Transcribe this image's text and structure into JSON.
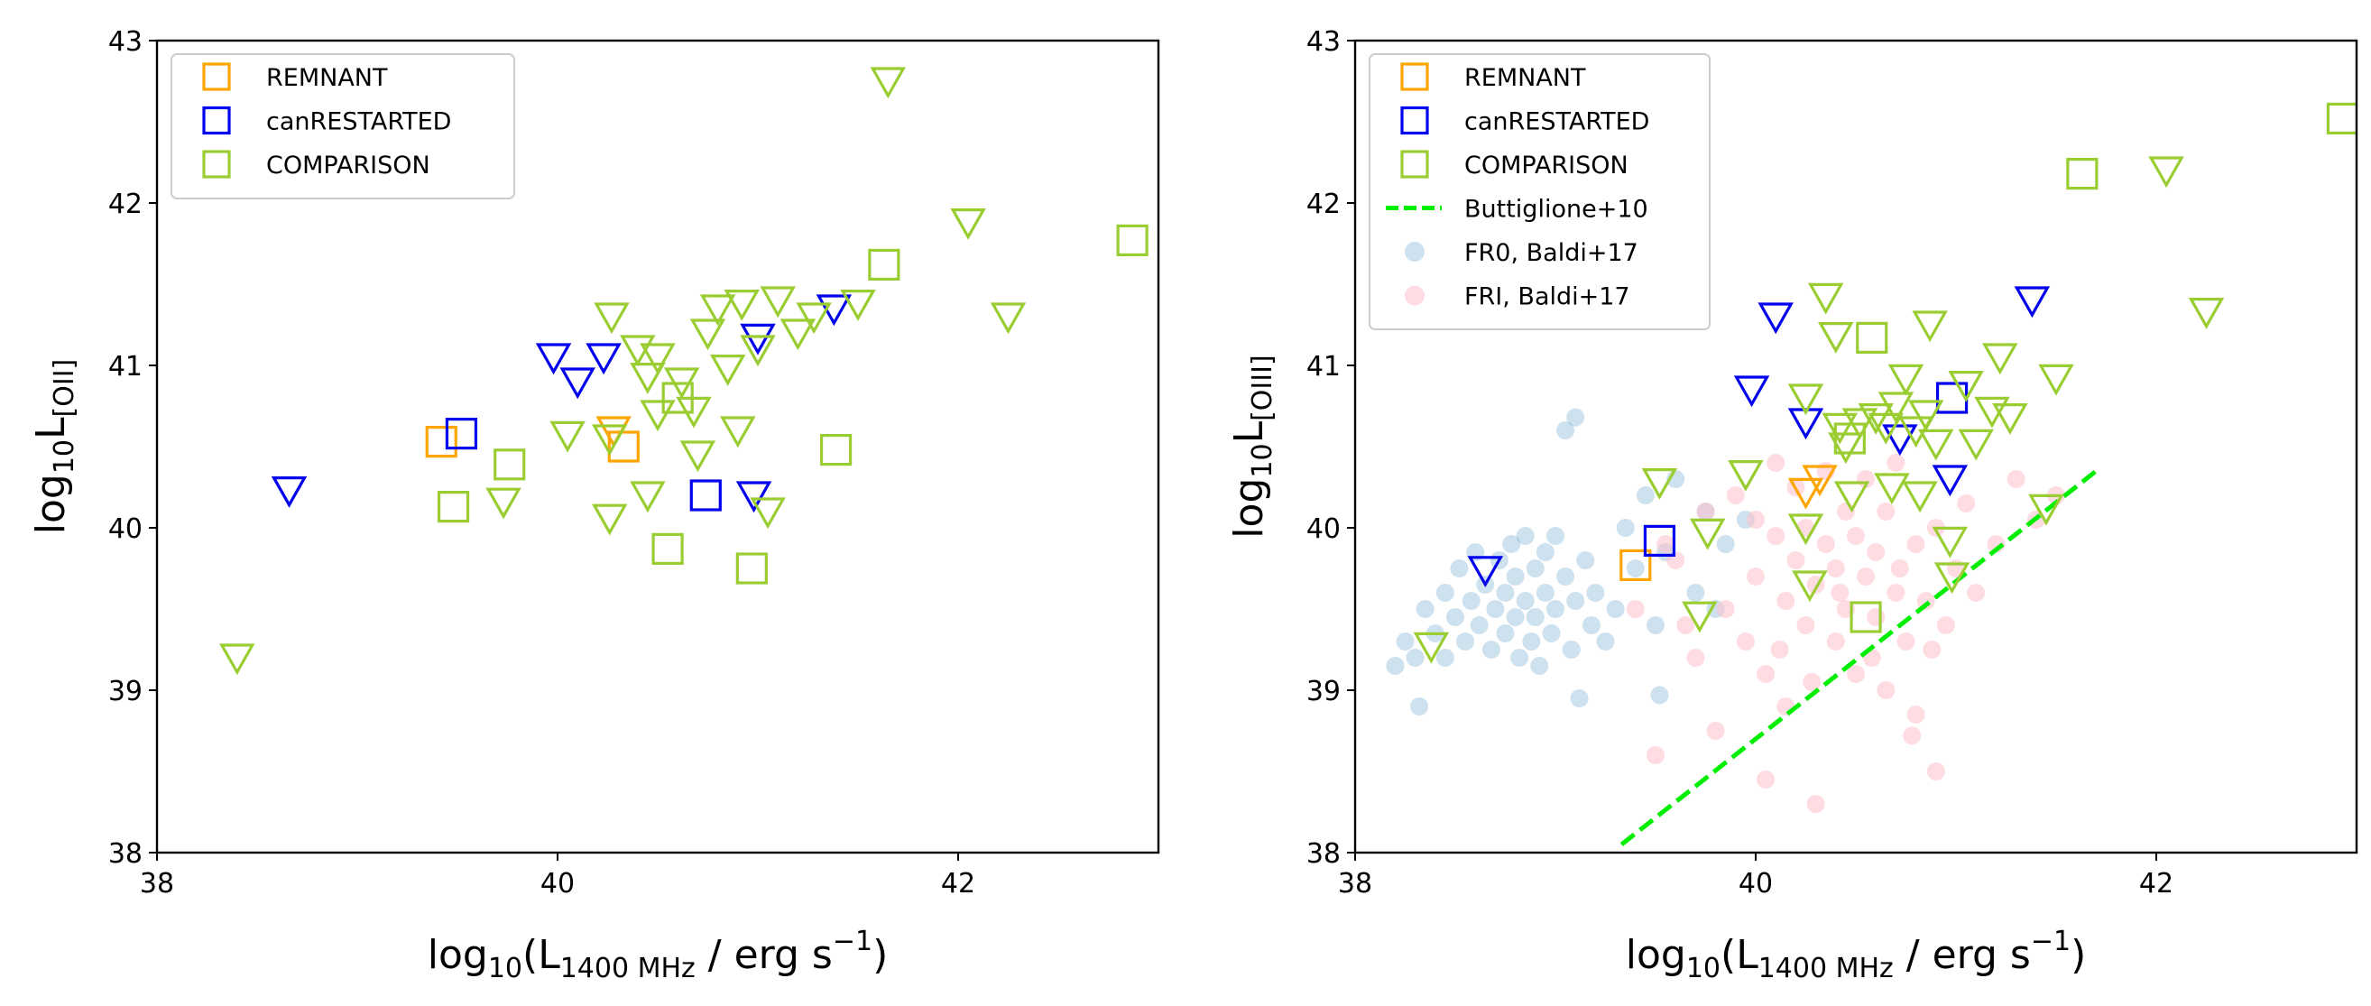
{
  "colors": {
    "remnant": "#ffa500",
    "canrestarted": "#0000ee",
    "comparison": "#9acd32",
    "buttiglione": "#00ee00",
    "fr0": "#1f77b4",
    "fri": "#ffc0cb"
  },
  "chart_data": [
    {
      "type": "scatter",
      "panel": "left",
      "xlim": [
        38,
        43
      ],
      "ylim": [
        38,
        43
      ],
      "xticks": [
        38,
        40,
        42
      ],
      "yticks": [
        38,
        39,
        40,
        41,
        42,
        43
      ],
      "xlabel": {
        "prefix": "log",
        "base": "10",
        "open": "(L",
        "sub": "1400 MHz",
        "unit": " / erg s",
        "exp": "−1",
        "close": ")"
      },
      "ylabel": {
        "prefix": "log",
        "base": "10",
        "main": "L",
        "sub": "[OII]"
      },
      "legend": {
        "loc": "top-left",
        "entries": [
          "REMNANT",
          "canRESTARTED",
          "COMPARISON"
        ]
      },
      "series": [
        {
          "name": "REMNANT",
          "color_key": "remnant",
          "squares": [
            [
              39.42,
              40.53
            ],
            [
              40.33,
              40.5
            ]
          ],
          "triangles": [
            [
              40.28,
              40.6
            ]
          ]
        },
        {
          "name": "canRESTARTED",
          "color_key": "canrestarted",
          "squares": [
            [
              39.52,
              40.58
            ],
            [
              40.74,
              40.2
            ]
          ],
          "triangles": [
            [
              38.66,
              40.23
            ],
            [
              39.98,
              41.05
            ],
            [
              40.1,
              40.9
            ],
            [
              40.23,
              41.05
            ],
            [
              41.0,
              41.17
            ],
            [
              41.38,
              41.35
            ],
            [
              40.98,
              40.2
            ]
          ]
        },
        {
          "name": "COMPARISON",
          "color_key": "comparison",
          "squares": [
            [
              39.48,
              40.13
            ],
            [
              39.76,
              40.39
            ],
            [
              40.55,
              39.87
            ],
            [
              40.6,
              40.8
            ],
            [
              40.97,
              39.75
            ],
            [
              41.39,
              40.48
            ],
            [
              41.63,
              41.62
            ],
            [
              42.87,
              41.77
            ]
          ],
          "triangles": [
            [
              38.4,
              39.2
            ],
            [
              39.73,
              40.16
            ],
            [
              40.05,
              40.57
            ],
            [
              40.26,
              40.06
            ],
            [
              40.27,
              41.3
            ],
            [
              40.26,
              40.55
            ],
            [
              40.4,
              41.1
            ],
            [
              40.45,
              40.93
            ],
            [
              40.45,
              40.2
            ],
            [
              40.5,
              41.05
            ],
            [
              40.5,
              40.7
            ],
            [
              40.62,
              40.9
            ],
            [
              40.68,
              40.72
            ],
            [
              40.7,
              40.45
            ],
            [
              40.75,
              41.2
            ],
            [
              40.8,
              41.35
            ],
            [
              40.85,
              40.98
            ],
            [
              40.9,
              40.6
            ],
            [
              40.92,
              41.38
            ],
            [
              41.0,
              41.1
            ],
            [
              41.05,
              40.1
            ],
            [
              41.1,
              41.4
            ],
            [
              41.2,
              41.2
            ],
            [
              41.28,
              41.3
            ],
            [
              41.5,
              41.38
            ],
            [
              41.65,
              42.75
            ],
            [
              42.05,
              41.88
            ],
            [
              42.25,
              41.3
            ]
          ]
        }
      ]
    },
    {
      "type": "scatter",
      "panel": "right",
      "xlim": [
        38,
        43
      ],
      "ylim": [
        38,
        43
      ],
      "xticks": [
        38,
        40,
        42
      ],
      "yticks": [
        38,
        39,
        40,
        41,
        42,
        43
      ],
      "xlabel": {
        "prefix": "log",
        "base": "10",
        "open": "(L",
        "sub": "1400 MHz",
        "unit": " / erg s",
        "exp": "−1",
        "close": ")"
      },
      "ylabel": {
        "prefix": "log",
        "base": "10",
        "main": "L",
        "sub": "[OIII]"
      },
      "legend": {
        "loc": "top-left",
        "entries": [
          "REMNANT",
          "canRESTARTED",
          "COMPARISON",
          "Buttiglione+10",
          "FR0, Baldi+17",
          "FRI, Baldi+17"
        ]
      },
      "buttiglione_line": {
        "x": [
          39.33,
          41.7
        ],
        "y": [
          38.05,
          40.35
        ]
      },
      "fr0_points": [
        [
          38.2,
          39.15
        ],
        [
          38.25,
          39.3
        ],
        [
          38.3,
          39.2
        ],
        [
          38.32,
          38.9
        ],
        [
          38.35,
          39.5
        ],
        [
          38.4,
          39.35
        ],
        [
          38.45,
          39.6
        ],
        [
          38.45,
          39.2
        ],
        [
          38.5,
          39.45
        ],
        [
          38.52,
          39.75
        ],
        [
          38.55,
          39.3
        ],
        [
          38.58,
          39.55
        ],
        [
          38.6,
          39.85
        ],
        [
          38.62,
          39.4
        ],
        [
          38.65,
          39.65
        ],
        [
          38.68,
          39.25
        ],
        [
          38.7,
          39.5
        ],
        [
          38.72,
          39.8
        ],
        [
          38.75,
          39.35
        ],
        [
          38.75,
          39.6
        ],
        [
          38.78,
          39.9
        ],
        [
          38.8,
          39.45
        ],
        [
          38.8,
          39.7
        ],
        [
          38.82,
          39.2
        ],
        [
          38.85,
          39.55
        ],
        [
          38.85,
          39.95
        ],
        [
          38.88,
          39.3
        ],
        [
          38.9,
          39.75
        ],
        [
          38.9,
          39.45
        ],
        [
          38.92,
          39.15
        ],
        [
          38.95,
          39.6
        ],
        [
          38.95,
          39.85
        ],
        [
          38.98,
          39.35
        ],
        [
          39.0,
          39.5
        ],
        [
          39.0,
          39.95
        ],
        [
          39.05,
          39.7
        ],
        [
          39.05,
          40.6
        ],
        [
          39.08,
          39.25
        ],
        [
          39.1,
          40.68
        ],
        [
          39.1,
          39.55
        ],
        [
          39.12,
          38.95
        ],
        [
          39.15,
          39.8
        ],
        [
          39.18,
          39.4
        ],
        [
          39.2,
          39.6
        ],
        [
          39.25,
          39.3
        ],
        [
          39.3,
          39.5
        ],
        [
          39.35,
          40.0
        ],
        [
          39.4,
          39.75
        ],
        [
          39.45,
          40.2
        ],
        [
          39.5,
          39.4
        ],
        [
          39.52,
          38.97
        ],
        [
          39.55,
          39.85
        ],
        [
          39.6,
          40.3
        ],
        [
          39.7,
          39.6
        ],
        [
          39.75,
          40.1
        ],
        [
          39.8,
          39.5
        ],
        [
          39.85,
          39.9
        ],
        [
          39.95,
          40.05
        ]
      ],
      "fri_points": [
        [
          39.4,
          39.5
        ],
        [
          39.5,
          38.6
        ],
        [
          39.6,
          39.8
        ],
        [
          39.7,
          39.2
        ],
        [
          39.75,
          40.1
        ],
        [
          39.8,
          38.75
        ],
        [
          39.85,
          39.5
        ],
        [
          39.9,
          40.2
        ],
        [
          39.95,
          39.3
        ],
        [
          40.0,
          39.7
        ],
        [
          40.0,
          40.05
        ],
        [
          40.05,
          39.1
        ],
        [
          40.05,
          38.45
        ],
        [
          40.1,
          39.95
        ],
        [
          40.1,
          40.4
        ],
        [
          40.15,
          39.55
        ],
        [
          40.15,
          38.9
        ],
        [
          40.2,
          39.8
        ],
        [
          40.2,
          40.25
        ],
        [
          40.25,
          39.4
        ],
        [
          40.25,
          40.0
        ],
        [
          40.3,
          39.65
        ],
        [
          40.3,
          38.3
        ],
        [
          40.35,
          39.9
        ],
        [
          40.35,
          40.35
        ],
        [
          40.4,
          39.3
        ],
        [
          40.4,
          39.75
        ],
        [
          40.45,
          40.1
        ],
        [
          40.45,
          39.5
        ],
        [
          40.5,
          39.95
        ],
        [
          40.5,
          39.1
        ],
        [
          40.55,
          39.7
        ],
        [
          40.55,
          40.3
        ],
        [
          40.6,
          39.45
        ],
        [
          40.6,
          39.85
        ],
        [
          40.65,
          40.1
        ],
        [
          40.65,
          39.0
        ],
        [
          40.7,
          39.6
        ],
        [
          40.7,
          40.4
        ],
        [
          40.75,
          39.3
        ],
        [
          40.8,
          39.9
        ],
        [
          40.8,
          38.85
        ],
        [
          40.85,
          39.55
        ],
        [
          40.9,
          40.0
        ],
        [
          40.9,
          38.5
        ],
        [
          40.95,
          39.4
        ],
        [
          41.0,
          39.75
        ],
        [
          41.05,
          40.15
        ],
        [
          41.1,
          39.6
        ],
        [
          41.2,
          39.9
        ],
        [
          41.3,
          40.3
        ],
        [
          41.4,
          40.05
        ],
        [
          41.5,
          40.2
        ],
        [
          39.55,
          39.9
        ],
        [
          39.65,
          39.4
        ],
        [
          40.12,
          39.25
        ],
        [
          40.28,
          39.05
        ],
        [
          40.42,
          39.6
        ],
        [
          40.58,
          39.2
        ],
        [
          40.72,
          39.75
        ],
        [
          40.78,
          38.72
        ],
        [
          40.88,
          39.25
        ]
      ],
      "series": [
        {
          "name": "REMNANT",
          "color_key": "remnant",
          "squares": [
            [
              39.4,
              39.77
            ]
          ],
          "triangles": [
            [
              40.25,
              40.22
            ],
            [
              40.32,
              40.3
            ]
          ]
        },
        {
          "name": "canRESTARTED",
          "color_key": "canrestarted",
          "squares": [
            [
              39.52,
              39.92
            ],
            [
              40.98,
              40.8
            ]
          ],
          "triangles": [
            [
              38.65,
              39.74
            ],
            [
              39.98,
              40.85
            ],
            [
              40.1,
              41.3
            ],
            [
              40.25,
              40.65
            ],
            [
              40.72,
              40.55
            ],
            [
              40.97,
              40.3
            ],
            [
              41.38,
              41.4
            ]
          ]
        },
        {
          "name": "COMPARISON",
          "color_key": "comparison",
          "squares": [
            [
              40.47,
              40.55
            ],
            [
              40.55,
              39.45
            ],
            [
              40.58,
              41.17
            ],
            [
              41.63,
              42.18
            ],
            [
              42.93,
              42.52
            ]
          ],
          "triangles": [
            [
              38.38,
              39.27
            ],
            [
              39.52,
              40.28
            ],
            [
              39.72,
              39.46
            ],
            [
              39.76,
              39.97
            ],
            [
              39.95,
              40.33
            ],
            [
              40.25,
              40.8
            ],
            [
              40.25,
              40.0
            ],
            [
              40.27,
              39.65
            ],
            [
              40.35,
              41.42
            ],
            [
              40.4,
              41.18
            ],
            [
              40.42,
              40.62
            ],
            [
              40.45,
              40.5
            ],
            [
              40.48,
              40.2
            ],
            [
              40.52,
              40.65
            ],
            [
              40.6,
              40.68
            ],
            [
              40.65,
              40.62
            ],
            [
              40.68,
              40.25
            ],
            [
              40.7,
              40.75
            ],
            [
              40.75,
              40.92
            ],
            [
              40.8,
              40.6
            ],
            [
              40.82,
              40.2
            ],
            [
              40.85,
              40.7
            ],
            [
              40.87,
              41.25
            ],
            [
              40.9,
              40.52
            ],
            [
              40.97,
              39.92
            ],
            [
              40.98,
              39.7
            ],
            [
              41.05,
              40.88
            ],
            [
              41.1,
              40.52
            ],
            [
              41.18,
              40.72
            ],
            [
              41.22,
              41.05
            ],
            [
              41.27,
              40.68
            ],
            [
              41.45,
              40.12
            ],
            [
              41.5,
              40.92
            ],
            [
              42.05,
              42.2
            ],
            [
              42.25,
              41.33
            ]
          ]
        }
      ]
    }
  ]
}
